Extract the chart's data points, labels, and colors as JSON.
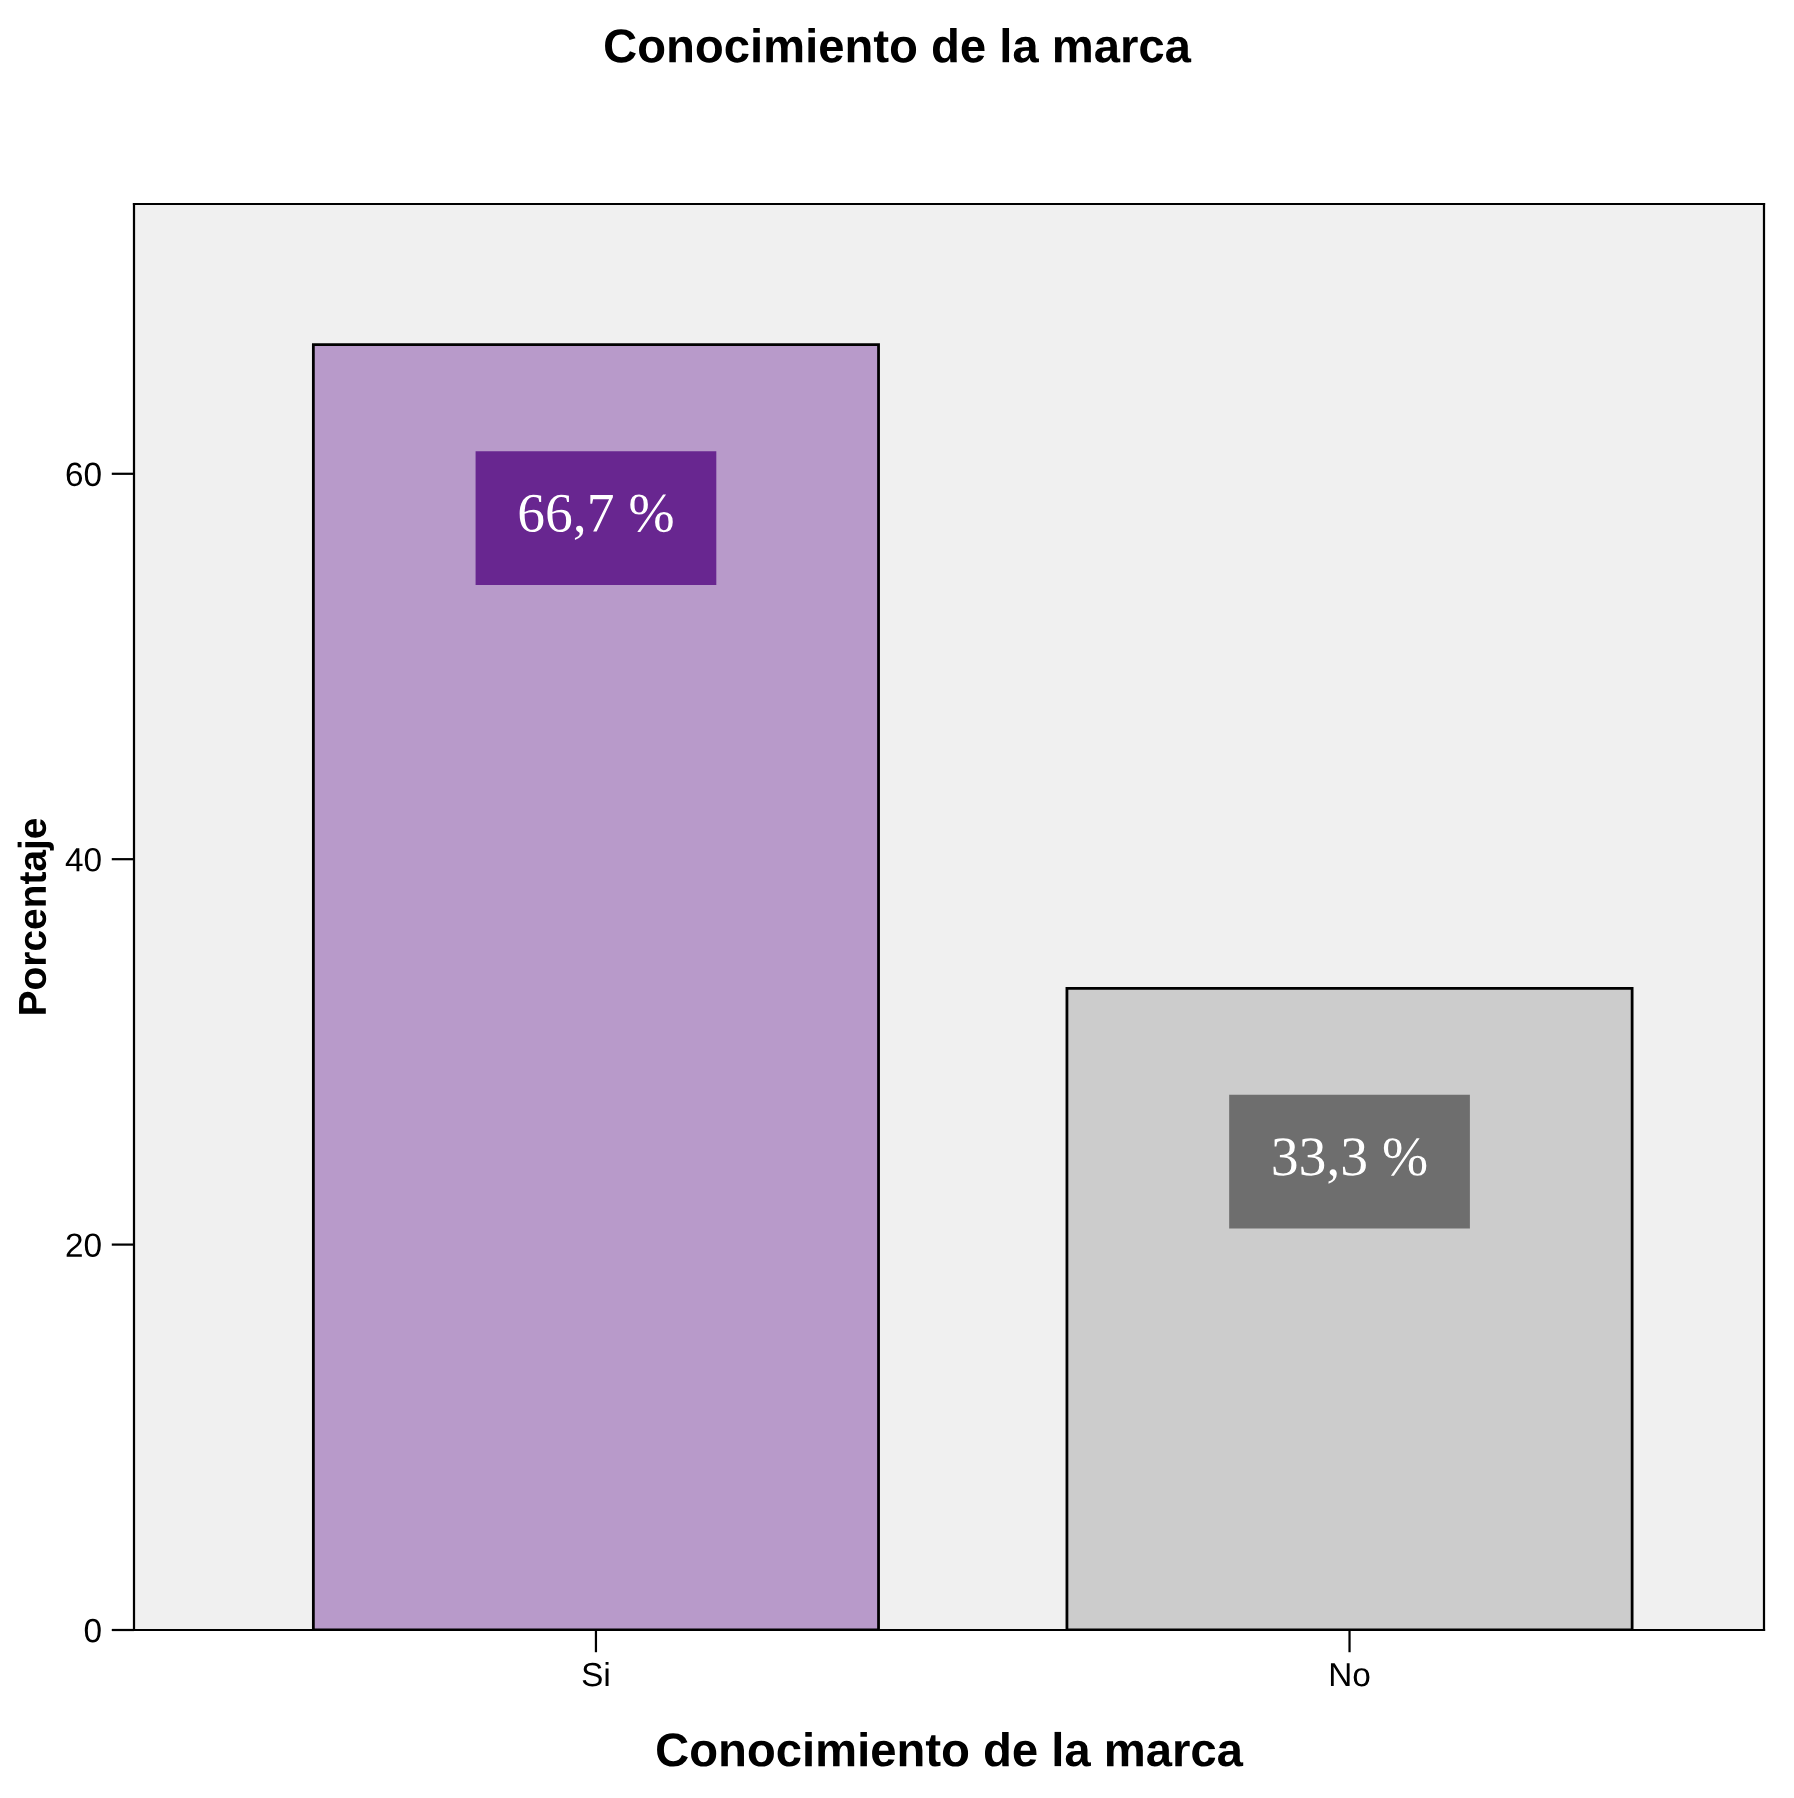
{
  "chart_data": {
    "type": "bar",
    "title": "Conocimiento de la marca",
    "xlabel": "Conocimiento de la marca",
    "ylabel": "Porcentaje",
    "categories": [
      "Si",
      "No"
    ],
    "values": [
      66.7,
      33.3
    ],
    "colors": [
      "#b89aca",
      "#cccccc"
    ],
    "value_labels": [
      "66,7 %",
      "33,3 %"
    ],
    "ylim": [
      0,
      74
    ],
    "yticks": [
      0,
      20,
      40,
      60
    ],
    "grid": false,
    "legend": false
  }
}
